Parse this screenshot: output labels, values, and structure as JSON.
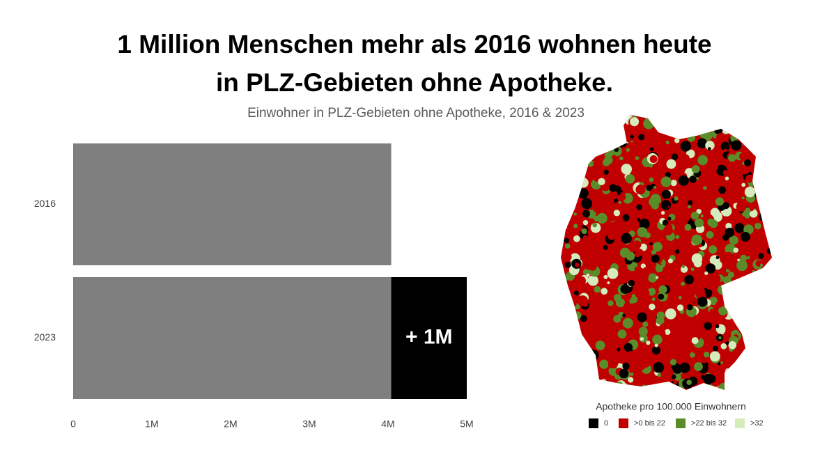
{
  "chart_data": {
    "type": "stacked-hbar",
    "title": [
      "1 Million Menschen mehr als 2016 wohnen heute",
      "in PLZ-Gebieten ohne Apotheke."
    ],
    "subtitle": "Einwohner in PLZ-Gebieten ohne Apotheke, 2016 & 2023",
    "categories": [
      "2016",
      "2023"
    ],
    "series": [
      {
        "color": "#7f7f7f",
        "values": [
          4040000,
          4040000
        ]
      },
      {
        "color": "#000000",
        "values": [
          null,
          960000
        ],
        "value_labels": [
          null,
          "+ 1M"
        ]
      }
    ],
    "xlim": [
      0,
      5000000
    ],
    "xticks": [
      0,
      {
        "value": 1000000,
        "label": "1M"
      },
      {
        "value": 2000000,
        "label": "2M"
      },
      {
        "value": 3000000,
        "label": "3M"
      },
      {
        "value": 4000000,
        "label": "4M"
      },
      {
        "value": 5000000,
        "label": "5M"
      }
    ]
  },
  "map": {
    "legend_title": "Apotheke pro 100.000 Einwohnern",
    "legend": [
      {
        "label": "0",
        "color": "#000000"
      },
      {
        "label": ">0 bis 22",
        "color": "#c00000"
      },
      {
        "label": ">22 bis 32",
        "color": "#5b8c2a"
      },
      {
        "label": ">32",
        "color": "#d4ebbc"
      }
    ]
  }
}
